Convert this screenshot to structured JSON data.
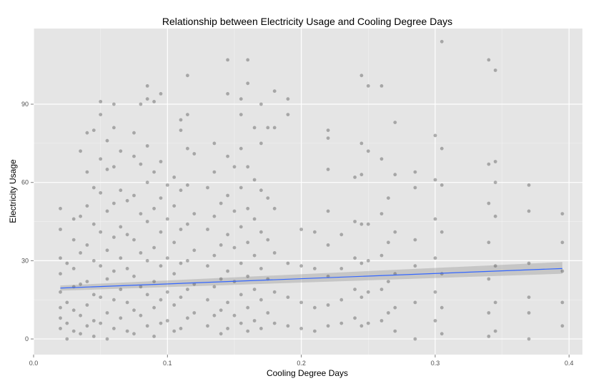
{
  "chart_data": {
    "type": "scatter",
    "title": "Relationship between Electricity Usage and Cooling Degree Days",
    "xlabel": "Cooling Degree Days",
    "ylabel": "Electricity Usage",
    "xlim": [
      0.0,
      0.41
    ],
    "ylim": [
      -6,
      119
    ],
    "x_ticks": [
      0.0,
      0.1,
      0.2,
      0.3,
      0.4
    ],
    "x_tick_labels": [
      "0.0",
      "0.1",
      "0.2",
      "0.3",
      "0.4"
    ],
    "y_ticks": [
      0,
      30,
      60,
      90
    ],
    "y_tick_labels": [
      "0",
      "30",
      "60",
      "90"
    ],
    "grid": true,
    "colors": {
      "panel": "#e5e5e5",
      "grid": "#ffffff",
      "points": "#595959",
      "smooth_line": "#3366ff",
      "confidence_band": "#999999"
    },
    "series": [
      {
        "kind": "points",
        "points": [
          [
            0.02,
            50
          ],
          [
            0.02,
            42
          ],
          [
            0.02,
            31
          ],
          [
            0.02,
            25
          ],
          [
            0.02,
            18
          ],
          [
            0.02,
            12
          ],
          [
            0.02,
            8
          ],
          [
            0.02,
            4
          ],
          [
            0.025,
            29
          ],
          [
            0.025,
            14
          ],
          [
            0.025,
            6
          ],
          [
            0.025,
            0
          ],
          [
            0.03,
            46
          ],
          [
            0.03,
            38
          ],
          [
            0.03,
            27
          ],
          [
            0.03,
            20
          ],
          [
            0.03,
            11
          ],
          [
            0.03,
            3
          ],
          [
            0.035,
            72
          ],
          [
            0.035,
            47
          ],
          [
            0.035,
            33
          ],
          [
            0.035,
            21
          ],
          [
            0.035,
            9
          ],
          [
            0.035,
            2
          ],
          [
            0.04,
            79
          ],
          [
            0.04,
            64
          ],
          [
            0.04,
            51
          ],
          [
            0.04,
            36
          ],
          [
            0.04,
            22
          ],
          [
            0.04,
            13
          ],
          [
            0.04,
            5
          ],
          [
            0.045,
            80
          ],
          [
            0.045,
            58
          ],
          [
            0.045,
            44
          ],
          [
            0.045,
            30
          ],
          [
            0.045,
            17
          ],
          [
            0.045,
            7
          ],
          [
            0.045,
            1
          ],
          [
            0.05,
            91
          ],
          [
            0.05,
            86
          ],
          [
            0.05,
            69
          ],
          [
            0.05,
            56
          ],
          [
            0.05,
            41
          ],
          [
            0.05,
            28
          ],
          [
            0.05,
            16
          ],
          [
            0.05,
            6
          ],
          [
            0.055,
            76
          ],
          [
            0.055,
            65
          ],
          [
            0.055,
            49
          ],
          [
            0.055,
            34
          ],
          [
            0.055,
            23
          ],
          [
            0.055,
            10
          ],
          [
            0.055,
            0
          ],
          [
            0.06,
            90
          ],
          [
            0.06,
            81
          ],
          [
            0.06,
            66
          ],
          [
            0.06,
            52
          ],
          [
            0.06,
            39
          ],
          [
            0.06,
            26
          ],
          [
            0.06,
            15
          ],
          [
            0.06,
            4
          ],
          [
            0.065,
            72
          ],
          [
            0.065,
            57
          ],
          [
            0.065,
            43
          ],
          [
            0.065,
            31
          ],
          [
            0.065,
            19
          ],
          [
            0.065,
            8
          ],
          [
            0.07,
            53
          ],
          [
            0.07,
            40
          ],
          [
            0.07,
            27
          ],
          [
            0.07,
            14
          ],
          [
            0.07,
            3
          ],
          [
            0.075,
            79
          ],
          [
            0.075,
            70
          ],
          [
            0.075,
            55
          ],
          [
            0.075,
            38
          ],
          [
            0.075,
            24
          ],
          [
            0.075,
            11
          ],
          [
            0.075,
            2
          ],
          [
            0.08,
            90
          ],
          [
            0.08,
            67
          ],
          [
            0.08,
            48
          ],
          [
            0.08,
            33
          ],
          [
            0.08,
            20
          ],
          [
            0.08,
            9
          ],
          [
            0.085,
            97
          ],
          [
            0.085,
            92
          ],
          [
            0.085,
            74
          ],
          [
            0.085,
            60
          ],
          [
            0.085,
            45
          ],
          [
            0.085,
            30
          ],
          [
            0.085,
            17
          ],
          [
            0.085,
            5
          ],
          [
            0.09,
            91
          ],
          [
            0.09,
            64
          ],
          [
            0.09,
            50
          ],
          [
            0.09,
            35
          ],
          [
            0.09,
            22
          ],
          [
            0.09,
            12
          ],
          [
            0.09,
            1
          ],
          [
            0.095,
            94
          ],
          [
            0.095,
            68
          ],
          [
            0.095,
            54
          ],
          [
            0.095,
            41
          ],
          [
            0.095,
            28
          ],
          [
            0.095,
            15
          ],
          [
            0.095,
            6
          ],
          [
            0.1,
            59
          ],
          [
            0.1,
            46
          ],
          [
            0.1,
            31
          ],
          [
            0.1,
            18
          ],
          [
            0.1,
            7
          ],
          [
            0.105,
            62
          ],
          [
            0.105,
            51
          ],
          [
            0.105,
            37
          ],
          [
            0.105,
            25
          ],
          [
            0.105,
            13
          ],
          [
            0.105,
            3
          ],
          [
            0.11,
            84
          ],
          [
            0.11,
            80
          ],
          [
            0.11,
            57
          ],
          [
            0.11,
            42
          ],
          [
            0.11,
            29
          ],
          [
            0.11,
            16
          ],
          [
            0.11,
            4
          ],
          [
            0.115,
            101
          ],
          [
            0.115,
            86
          ],
          [
            0.115,
            73
          ],
          [
            0.115,
            59
          ],
          [
            0.115,
            44
          ],
          [
            0.115,
            30
          ],
          [
            0.115,
            19
          ],
          [
            0.115,
            8
          ],
          [
            0.12,
            71
          ],
          [
            0.12,
            48
          ],
          [
            0.12,
            34
          ],
          [
            0.12,
            21
          ],
          [
            0.12,
            10
          ],
          [
            0.13,
            58
          ],
          [
            0.13,
            42
          ],
          [
            0.13,
            28
          ],
          [
            0.13,
            15
          ],
          [
            0.13,
            5
          ],
          [
            0.135,
            75
          ],
          [
            0.135,
            64
          ],
          [
            0.135,
            47
          ],
          [
            0.135,
            32
          ],
          [
            0.135,
            20
          ],
          [
            0.135,
            9
          ],
          [
            0.14,
            52
          ],
          [
            0.14,
            36
          ],
          [
            0.14,
            23
          ],
          [
            0.14,
            11
          ],
          [
            0.14,
            2
          ],
          [
            0.145,
            107
          ],
          [
            0.145,
            94
          ],
          [
            0.145,
            70
          ],
          [
            0.145,
            55
          ],
          [
            0.145,
            40
          ],
          [
            0.145,
            26
          ],
          [
            0.145,
            14
          ],
          [
            0.145,
            4
          ],
          [
            0.15,
            66
          ],
          [
            0.15,
            49
          ],
          [
            0.15,
            35
          ],
          [
            0.15,
            22
          ],
          [
            0.15,
            9
          ],
          [
            0.155,
            92
          ],
          [
            0.155,
            86
          ],
          [
            0.155,
            73
          ],
          [
            0.155,
            58
          ],
          [
            0.155,
            43
          ],
          [
            0.155,
            29
          ],
          [
            0.155,
            17
          ],
          [
            0.155,
            6
          ],
          [
            0.16,
            107
          ],
          [
            0.16,
            98
          ],
          [
            0.16,
            66
          ],
          [
            0.16,
            50
          ],
          [
            0.16,
            37
          ],
          [
            0.16,
            24
          ],
          [
            0.16,
            12
          ],
          [
            0.16,
            3
          ],
          [
            0.165,
            81
          ],
          [
            0.165,
            61
          ],
          [
            0.165,
            46
          ],
          [
            0.165,
            32
          ],
          [
            0.165,
            19
          ],
          [
            0.165,
            7
          ],
          [
            0.17,
            90
          ],
          [
            0.17,
            75
          ],
          [
            0.17,
            57
          ],
          [
            0.17,
            41
          ],
          [
            0.17,
            27
          ],
          [
            0.17,
            15
          ],
          [
            0.17,
            4
          ],
          [
            0.175,
            81
          ],
          [
            0.175,
            54
          ],
          [
            0.175,
            38
          ],
          [
            0.175,
            23
          ],
          [
            0.175,
            10
          ],
          [
            0.18,
            95
          ],
          [
            0.18,
            81
          ],
          [
            0.18,
            50
          ],
          [
            0.18,
            33
          ],
          [
            0.18,
            18
          ],
          [
            0.18,
            6
          ],
          [
            0.19,
            92
          ],
          [
            0.19,
            86
          ],
          [
            0.19,
            29
          ],
          [
            0.19,
            16
          ],
          [
            0.19,
            5
          ],
          [
            0.2,
            42
          ],
          [
            0.2,
            28
          ],
          [
            0.2,
            14
          ],
          [
            0.2,
            4
          ],
          [
            0.21,
            41
          ],
          [
            0.21,
            27
          ],
          [
            0.21,
            12
          ],
          [
            0.21,
            3
          ],
          [
            0.22,
            80
          ],
          [
            0.22,
            77
          ],
          [
            0.22,
            65
          ],
          [
            0.22,
            49
          ],
          [
            0.22,
            36
          ],
          [
            0.22,
            24
          ],
          [
            0.22,
            13
          ],
          [
            0.22,
            5
          ],
          [
            0.23,
            40
          ],
          [
            0.23,
            27
          ],
          [
            0.23,
            15
          ],
          [
            0.23,
            6
          ],
          [
            0.24,
            62
          ],
          [
            0.24,
            45
          ],
          [
            0.24,
            31
          ],
          [
            0.24,
            19
          ],
          [
            0.24,
            8
          ],
          [
            0.245,
            101
          ],
          [
            0.245,
            75
          ],
          [
            0.245,
            63
          ],
          [
            0.245,
            44
          ],
          [
            0.245,
            29
          ],
          [
            0.245,
            16
          ],
          [
            0.245,
            5
          ],
          [
            0.25,
            97
          ],
          [
            0.25,
            72
          ],
          [
            0.25,
            44
          ],
          [
            0.25,
            30
          ],
          [
            0.25,
            18
          ],
          [
            0.25,
            6
          ],
          [
            0.26,
            97
          ],
          [
            0.26,
            69
          ],
          [
            0.26,
            48
          ],
          [
            0.26,
            32
          ],
          [
            0.26,
            19
          ],
          [
            0.26,
            7
          ],
          [
            0.265,
            54
          ],
          [
            0.265,
            37
          ],
          [
            0.265,
            22
          ],
          [
            0.265,
            10
          ],
          [
            0.27,
            83
          ],
          [
            0.27,
            63
          ],
          [
            0.27,
            41
          ],
          [
            0.27,
            25
          ],
          [
            0.27,
            12
          ],
          [
            0.27,
            3
          ],
          [
            0.285,
            64
          ],
          [
            0.285,
            58
          ],
          [
            0.285,
            38
          ],
          [
            0.285,
            28
          ],
          [
            0.285,
            14
          ],
          [
            0.285,
            0
          ],
          [
            0.3,
            78
          ],
          [
            0.3,
            61
          ],
          [
            0.3,
            46
          ],
          [
            0.3,
            31
          ],
          [
            0.3,
            18
          ],
          [
            0.3,
            7
          ],
          [
            0.305,
            114
          ],
          [
            0.305,
            73
          ],
          [
            0.305,
            59
          ],
          [
            0.305,
            41
          ],
          [
            0.305,
            25
          ],
          [
            0.305,
            12
          ],
          [
            0.305,
            2
          ],
          [
            0.34,
            107
          ],
          [
            0.34,
            67
          ],
          [
            0.34,
            52
          ],
          [
            0.34,
            37
          ],
          [
            0.34,
            23
          ],
          [
            0.34,
            10
          ],
          [
            0.34,
            1
          ],
          [
            0.345,
            103
          ],
          [
            0.345,
            68
          ],
          [
            0.345,
            60
          ],
          [
            0.345,
            47
          ],
          [
            0.345,
            28
          ],
          [
            0.345,
            14
          ],
          [
            0.345,
            3
          ],
          [
            0.37,
            59
          ],
          [
            0.37,
            49
          ],
          [
            0.37,
            29
          ],
          [
            0.37,
            16
          ],
          [
            0.37,
            10
          ],
          [
            0.37,
            0
          ],
          [
            0.395,
            48
          ],
          [
            0.395,
            37
          ],
          [
            0.395,
            26
          ],
          [
            0.395,
            14
          ],
          [
            0.395,
            5
          ]
        ]
      },
      {
        "kind": "smooth",
        "method": "linear",
        "x": [
          0.02,
          0.395
        ],
        "y": [
          19.5,
          27.0
        ],
        "band_lower": [
          18.5,
          25.0
        ],
        "band_upper": [
          20.5,
          29.5
        ]
      }
    ]
  }
}
